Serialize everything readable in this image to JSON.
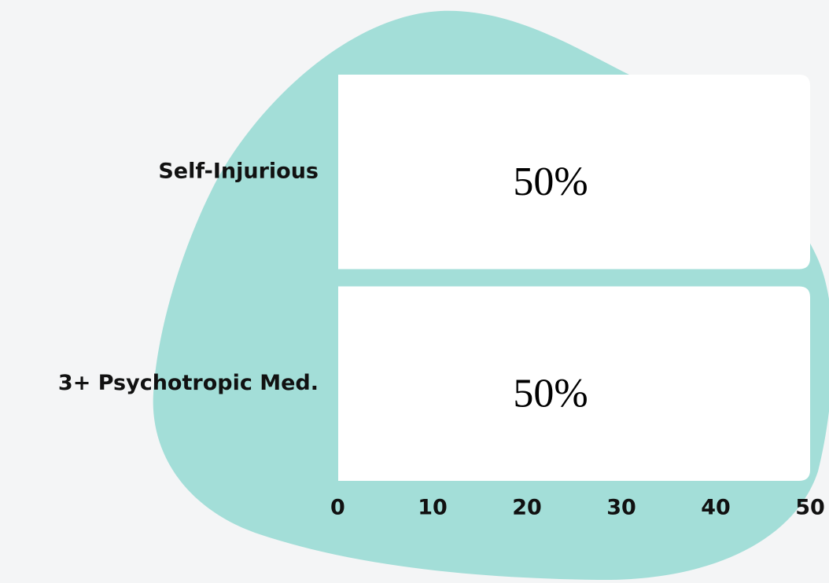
{
  "chart_data": {
    "type": "bar",
    "orientation": "horizontal",
    "categories": [
      "Self-Injurious",
      "3+ Psychotropic Med."
    ],
    "values": [
      50,
      50
    ],
    "value_labels": [
      "50%",
      "50%"
    ],
    "color": "#ffffff",
    "xlim": [
      0,
      50
    ],
    "xticks": [
      0,
      10,
      20,
      30,
      40,
      50
    ]
  }
}
